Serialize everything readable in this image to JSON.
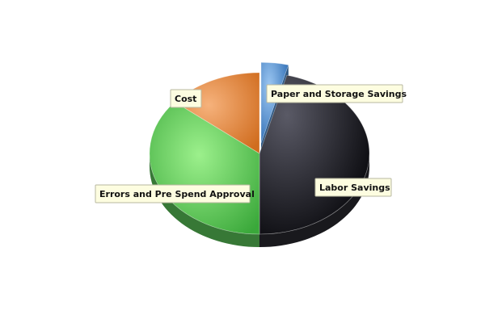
{
  "chart_data": {
    "type": "pie",
    "style": "3d-exploded",
    "slices": [
      {
        "label": "Paper and Storage Savings",
        "value": 4,
        "color": "#4a90d9"
      },
      {
        "label": "Labor Savings",
        "value": 46,
        "color": "#2a2a30"
      },
      {
        "label": "Errors and Pre Spend Approval",
        "value": 36,
        "color": "#5cc85a"
      },
      {
        "label": "Cost",
        "value": 14,
        "color": "#e8843c"
      }
    ],
    "exploded_slice": "Paper and Storage Savings",
    "legend": "none"
  }
}
